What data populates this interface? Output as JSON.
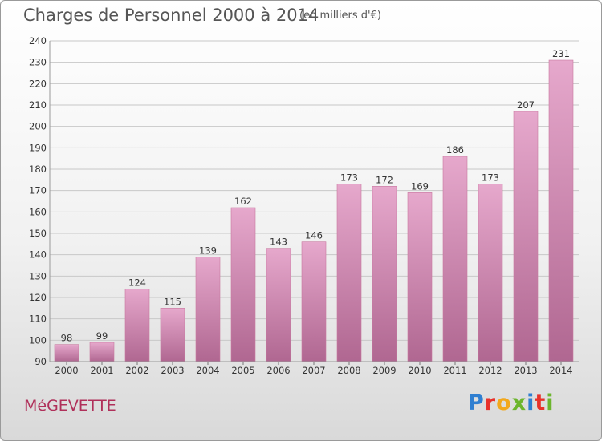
{
  "header": {
    "title": "Charges de Personnel 2000 à 2014",
    "subtitle": "(en milliers d'€)"
  },
  "footer": {
    "commune": "MéGEVETTE",
    "logo_letters": [
      {
        "char": "P",
        "color": "#2f7fd1"
      },
      {
        "char": "r",
        "color": "#e8322b"
      },
      {
        "char": "o",
        "color": "#f2a81d"
      },
      {
        "char": "x",
        "color": "#6cb52d"
      },
      {
        "char": "i",
        "color": "#2f7fd1"
      },
      {
        "char": "t",
        "color": "#e8322b"
      },
      {
        "char": "i",
        "color": "#6cb52d"
      }
    ]
  },
  "colors": {
    "bar_top": "#e6a8cc",
    "bar_bottom": "#b06791",
    "grid": "#c8c8c8",
    "axis_text": "#333333"
  },
  "chart_data": {
    "type": "bar",
    "title": "Charges de Personnel 2000 à 2014",
    "subtitle": "(en milliers d'€)",
    "categories": [
      "2000",
      "2001",
      "2002",
      "2003",
      "2004",
      "2005",
      "2006",
      "2007",
      "2008",
      "2009",
      "2010",
      "2011",
      "2012",
      "2013",
      "2014"
    ],
    "values": [
      98,
      99,
      124,
      115,
      139,
      162,
      143,
      146,
      173,
      172,
      169,
      186,
      173,
      207,
      231
    ],
    "ylim": [
      90,
      240
    ],
    "yticks": [
      90,
      100,
      110,
      120,
      130,
      140,
      150,
      160,
      170,
      180,
      190,
      200,
      210,
      220,
      230,
      240
    ],
    "grid": true,
    "xlabel": "",
    "ylabel": ""
  }
}
